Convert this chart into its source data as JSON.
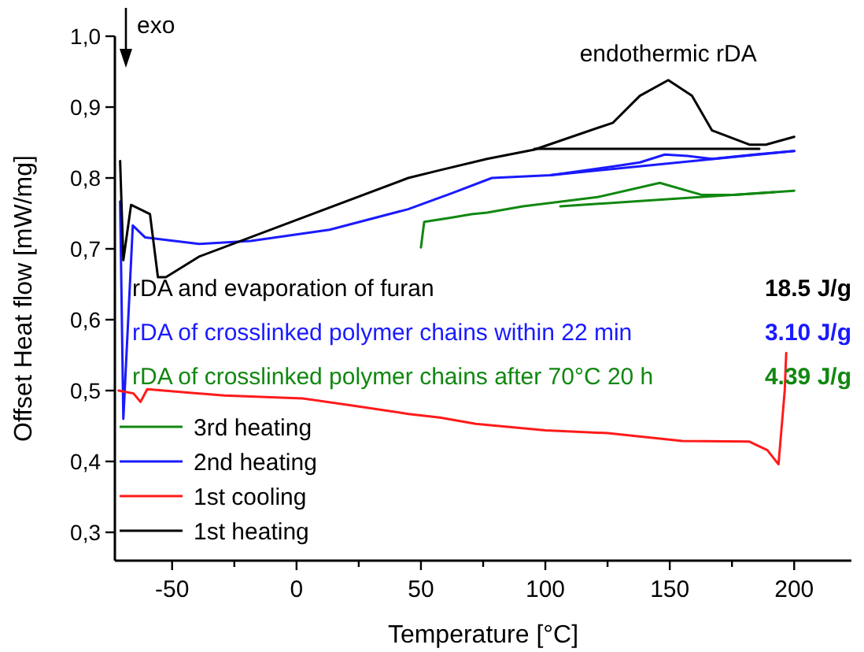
{
  "chart_data": {
    "type": "line",
    "xlabel": "Temperature [°C]",
    "ylabel": "Offset Heat flow [mW/mg]",
    "xlim": [
      -73,
      223
    ],
    "xticks": [
      -50,
      {
        "value": -25,
        "label": null
      },
      0,
      {
        "value": 25,
        "label": null
      },
      50,
      {
        "value": 75,
        "label": null
      },
      100,
      {
        "value": 125,
        "label": null
      },
      150,
      {
        "value": 175,
        "label": null
      },
      200
    ],
    "ylim": [
      0.26,
      1.0
    ],
    "yticks": [
      {
        "value": 0.3,
        "label": "0,3"
      },
      {
        "value": 0.4,
        "label": "0,4"
      },
      {
        "value": 0.5,
        "label": "0,5"
      },
      {
        "value": 0.6,
        "label": "0,6"
      },
      {
        "value": 0.7,
        "label": "0,7"
      },
      {
        "value": 0.8,
        "label": "0,8"
      },
      {
        "value": 0.9,
        "label": "0,9"
      },
      {
        "value": 1.0,
        "label": "1,0"
      }
    ],
    "grid": false,
    "legend": "bottom left",
    "marker": "none",
    "line_style": "solid",
    "series": [
      {
        "name": "3rd heating",
        "color": "#118811",
        "x": [
          50,
          51.3,
          62,
          70.3,
          76.6,
          91,
          121,
          146,
          163,
          176,
          200
        ],
        "values": [
          0.702,
          0.738,
          0.744,
          0.749,
          0.751,
          0.76,
          0.773,
          0.793,
          0.776,
          0.776,
          0.782
        ]
      },
      {
        "name": "2nd heating",
        "color": "#1a1aff",
        "x": [
          -70.9,
          -69.6,
          -65.8,
          -60.8,
          -39.2,
          -18.4,
          13.3,
          44.9,
          62,
          78.5,
          102,
          127,
          138,
          148,
          157,
          167,
          184,
          200
        ],
        "values": [
          0.767,
          0.46,
          0.733,
          0.716,
          0.707,
          0.711,
          0.727,
          0.756,
          0.778,
          0.8,
          0.804,
          0.816,
          0.822,
          0.833,
          0.831,
          0.827,
          0.833,
          0.838
        ]
      },
      {
        "name": "1st cooling",
        "color": "#ff1a1a",
        "x": [
          196.8,
          196.2,
          193.7,
          189.2,
          182,
          155,
          125,
          100,
          72,
          57.6,
          45,
          24,
          2.5,
          -29,
          -60,
          -62.7,
          -65.5,
          -71.5
        ],
        "values": [
          0.553,
          0.5,
          0.396,
          0.416,
          0.428,
          0.429,
          0.44,
          0.444,
          0.453,
          0.462,
          0.467,
          0.478,
          0.489,
          0.493,
          0.502,
          0.484,
          0.496,
          0.5
        ]
      },
      {
        "name": "1st heating",
        "color": "#000000",
        "x": [
          -70.9,
          -69.6,
          -66.5,
          -58.9,
          -55.7,
          -52.5,
          -39.2,
          2.5,
          44.9,
          57.6,
          76.6,
          95.6,
          127.2,
          138,
          149.4,
          158.9,
          167,
          182,
          188.6,
          200
        ],
        "values": [
          0.824,
          0.684,
          0.762,
          0.749,
          0.66,
          0.66,
          0.689,
          0.744,
          0.8,
          0.811,
          0.827,
          0.84,
          0.878,
          0.916,
          0.938,
          0.916,
          0.867,
          0.847,
          0.847,
          0.858
        ]
      },
      {
        "color": "#000000",
        "x": [
          95.6,
          186
        ],
        "values": [
          0.841,
          0.841
        ]
      },
      {
        "color": "#1a1aff",
        "x": [
          102,
          200
        ],
        "values": [
          0.804,
          0.838
        ]
      },
      {
        "color": "#118811",
        "x": [
          106,
          192
        ],
        "values": [
          0.76,
          0.78
        ]
      }
    ],
    "annotations": [
      "exo",
      {
        "text": "endothermic rDA",
        "x": 149.4,
        "y": 0.938
      },
      {
        "text": "rDA and evaporation of furan"
      },
      {
        "text": "18.5 J/g"
      },
      {
        "text": "rDA of crosslinked polymer chains within 22 min"
      },
      {
        "text": "3.10 J/g"
      },
      {
        "text": "rDA of crosslinked polymer chains after 70°C 20 h"
      },
      {
        "text": "4.39 J/g"
      }
    ]
  }
}
